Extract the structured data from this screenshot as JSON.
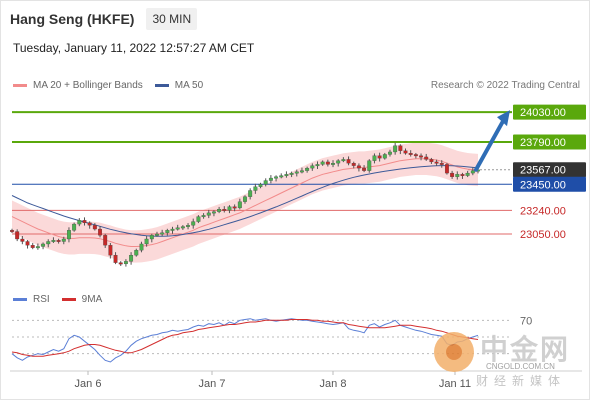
{
  "header": {
    "title": "Hang Seng (HKFE)",
    "timeframe": "30 MIN",
    "timestamp": "Tuesday, January 11, 2022 12:57:27 AM CET"
  },
  "legend": {
    "ma20_bb": "MA 20 + Bollinger Bands",
    "ma50": "MA 50",
    "rsi": "RSI",
    "ma9": "9MA"
  },
  "credit": "Research © 2022 Trading Central",
  "watermark": {
    "cn": "中金网",
    "site": "CNGOLD.COM.CN",
    "sub": "财经新媒体"
  },
  "colors": {
    "up_candle": "#4caf50",
    "down_candle": "#c62828",
    "bollinger_fill": "#fbd9d9",
    "ma20": "#f28b8b",
    "ma50": "#3d5a99",
    "resistance": "#5aa80c",
    "support": "#1f4ea8",
    "minor_support": "#e06a6a",
    "current_price": "#333333",
    "arrow": "#2f6db5",
    "rsi_line": "#5b7fd6",
    "rsi_ma": "#d32f2f"
  },
  "chart_data": {
    "type": "candlestick",
    "x_labels": [
      "Jan 6",
      "Jan 7",
      "Jan 8",
      "Jan 11"
    ],
    "ylim": [
      22640,
      24160
    ],
    "levels": [
      {
        "value": 24030.0,
        "label": "24030.00",
        "kind": "resistance"
      },
      {
        "value": 23790.0,
        "label": "23790.00",
        "kind": "resistance"
      },
      {
        "value": 23567.0,
        "label": "23567.00",
        "kind": "current"
      },
      {
        "value": 23450.0,
        "label": "23450.00",
        "kind": "support"
      },
      {
        "value": 23240.0,
        "label": "23240.00",
        "kind": "minor_support"
      },
      {
        "value": 23050.0,
        "label": "23050.00",
        "kind": "minor_support"
      }
    ],
    "projection": {
      "from": 23567,
      "to": 24030
    },
    "closes": [
      23070,
      23010,
      22990,
      22960,
      22940,
      22950,
      22970,
      22990,
      23000,
      22990,
      23010,
      23080,
      23130,
      23160,
      23140,
      23120,
      23090,
      23040,
      22960,
      22880,
      22820,
      22810,
      22830,
      22880,
      22920,
      22970,
      23010,
      23040,
      23050,
      23060,
      23080,
      23090,
      23100,
      23110,
      23120,
      23150,
      23190,
      23200,
      23220,
      23230,
      23250,
      23240,
      23270,
      23260,
      23310,
      23350,
      23400,
      23430,
      23450,
      23480,
      23500,
      23510,
      23520,
      23530,
      23540,
      23550,
      23560,
      23580,
      23600,
      23610,
      23630,
      23610,
      23620,
      23640,
      23650,
      23620,
      23600,
      23580,
      23560,
      23640,
      23680,
      23660,
      23690,
      23710,
      23760,
      23720,
      23700,
      23690,
      23680,
      23670,
      23650,
      23630,
      23620,
      23610,
      23540,
      23510,
      23530,
      23520,
      23540,
      23560,
      23567
    ],
    "ma20": [
      23190,
      23170,
      23150,
      23130,
      23110,
      23090,
      23075,
      23060,
      23045,
      23030,
      23020,
      23015,
      23015,
      23020,
      23020,
      23020,
      23018,
      23012,
      23000,
      22990,
      22975,
      22965,
      22955,
      22950,
      22950,
      22952,
      22958,
      22965,
      22975,
      22990,
      23005,
      23020,
      23035,
      23050,
      23065,
      23080,
      23100,
      23115,
      23130,
      23145,
      23160,
      23175,
      23190,
      23205,
      23220,
      23240,
      23260,
      23280,
      23300,
      23320,
      23340,
      23360,
      23380,
      23400,
      23420,
      23440,
      23460,
      23480,
      23500,
      23515,
      23530,
      23540,
      23550,
      23560,
      23570,
      23575,
      23580,
      23585,
      23585,
      23590,
      23595,
      23600,
      23610,
      23620,
      23630,
      23640,
      23645,
      23650,
      23655,
      23655,
      23655,
      23650,
      23645,
      23635,
      23620,
      23605,
      23590,
      23580,
      23572,
      23568,
      23565
    ],
    "ma50": [
      23360,
      23340,
      23320,
      23300,
      23285,
      23270,
      23255,
      23240,
      23225,
      23210,
      23195,
      23182,
      23170,
      23158,
      23146,
      23135,
      23124,
      23112,
      23100,
      23088,
      23078,
      23068,
      23060,
      23052,
      23046,
      23040,
      23036,
      23033,
      23032,
      23032,
      23033,
      23036,
      23040,
      23046,
      23053,
      23060,
      23068,
      23078,
      23088,
      23100,
      23112,
      23125,
      23138,
      23150,
      23163,
      23176,
      23190,
      23205,
      23220,
      23236,
      23252,
      23268,
      23285,
      23302,
      23320,
      23338,
      23356,
      23374,
      23392,
      23410,
      23426,
      23442,
      23456,
      23470,
      23483,
      23495,
      23506,
      23516,
      23525,
      23533,
      23541,
      23548,
      23555,
      23561,
      23567,
      23573,
      23578,
      23583,
      23587,
      23591,
      23594,
      23597,
      23599,
      23600,
      23600,
      23599,
      23597,
      23594,
      23590,
      23586,
      23582
    ],
    "bb_width": 130,
    "rsi": {
      "level_label": "70",
      "levels": [
        70,
        50,
        30
      ],
      "values": [
        30,
        25,
        22,
        26,
        28,
        30,
        29,
        32,
        35,
        33,
        36,
        48,
        52,
        50,
        45,
        40,
        35,
        28,
        22,
        20,
        25,
        28,
        33,
        40,
        45,
        48,
        50,
        52,
        53,
        55,
        56,
        58,
        57,
        58,
        59,
        62,
        64,
        63,
        66,
        65,
        67,
        64,
        68,
        66,
        70,
        71,
        72,
        70,
        71,
        72,
        70,
        69,
        70,
        71,
        72,
        71,
        70,
        70,
        69,
        68,
        67,
        66,
        65,
        66,
        67,
        60,
        58,
        57,
        55,
        64,
        66,
        62,
        65,
        67,
        70,
        64,
        62,
        60,
        58,
        57,
        55,
        53,
        52,
        51,
        42,
        40,
        44,
        45,
        48,
        50,
        52
      ],
      "ma9": [
        32,
        31,
        29,
        28,
        27,
        27,
        27,
        28,
        29,
        30,
        31,
        33,
        36,
        38,
        40,
        41,
        41,
        40,
        38,
        36,
        34,
        33,
        31,
        31,
        33,
        35,
        38,
        41,
        44,
        47,
        50,
        52,
        53,
        55,
        56,
        57,
        59,
        60,
        61,
        62,
        63,
        64,
        65,
        65,
        66,
        67,
        68,
        68,
        69,
        70,
        70,
        70,
        70,
        70,
        71,
        71,
        71,
        71,
        70,
        70,
        69,
        69,
        68,
        67,
        67,
        65,
        64,
        63,
        62,
        61,
        61,
        61,
        61,
        62,
        63,
        64,
        64,
        64,
        63,
        62,
        61,
        60,
        58,
        57,
        55,
        53,
        51,
        50,
        49,
        48,
        47
      ]
    }
  }
}
